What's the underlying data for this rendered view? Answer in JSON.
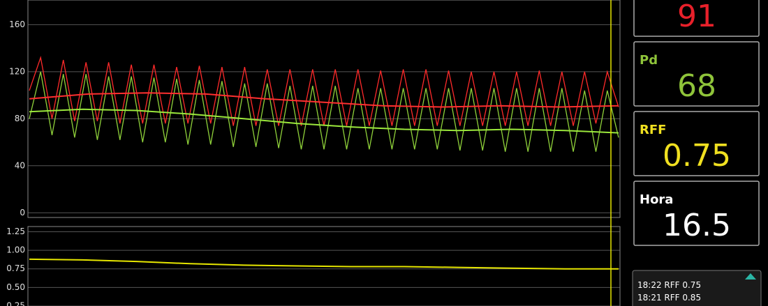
{
  "charts": [
    {
      "type": "line",
      "ylim": [
        -4,
        181
      ],
      "yticks": [
        0,
        40,
        80,
        120,
        160
      ],
      "grid": true,
      "series": [
        {
          "color": "#ff2a2a",
          "values": [
            104,
            132,
            80,
            130,
            78,
            128,
            78,
            128,
            76,
            126,
            76,
            126,
            76,
            124,
            76,
            125,
            76,
            124,
            74,
            124,
            74,
            122,
            74,
            122,
            74,
            122,
            74,
            122,
            74,
            122,
            74,
            121,
            74,
            122,
            74,
            122,
            74,
            121,
            74,
            120,
            74,
            120,
            74,
            120,
            74,
            121,
            74,
            120,
            74,
            120,
            76,
            120,
            90
          ]
        },
        {
          "color": "#8fd13a",
          "values": [
            80,
            120,
            66,
            118,
            64,
            118,
            62,
            116,
            62,
            116,
            60,
            115,
            60,
            114,
            58,
            113,
            58,
            112,
            56,
            110,
            56,
            110,
            55,
            108,
            54,
            108,
            54,
            108,
            54,
            106,
            54,
            106,
            54,
            106,
            54,
            106,
            54,
            106,
            53,
            106,
            53,
            106,
            52,
            106,
            52,
            106,
            52,
            106,
            52,
            104,
            52,
            104,
            64
          ]
        },
        {
          "color": "#ff3030",
          "values": [
            97,
            101,
            102,
            101,
            97,
            94,
            91,
            90,
            91,
            90,
            91
          ]
        },
        {
          "color": "#9be83c",
          "values": [
            86,
            88,
            87,
            84,
            80,
            76,
            73,
            71,
            70,
            71,
            70,
            68
          ]
        }
      ]
    },
    {
      "type": "line",
      "ylim": [
        0.25,
        1.32
      ],
      "yticks": [
        0.25,
        {
          "value": 0.5,
          "label": "0.50"
        },
        0.75,
        {
          "value": 1.0,
          "label": "1.00"
        },
        1.25
      ],
      "grid": true,
      "series": [
        {
          "color": "#e6e600",
          "values": [
            0.88,
            0.87,
            0.85,
            0.82,
            0.8,
            0.79,
            0.78,
            0.78,
            0.77,
            0.76,
            0.75,
            0.75
          ]
        }
      ]
    }
  ],
  "readouts": [
    {
      "value": 91,
      "color": "#e8202a"
    },
    {
      "label": "Pd",
      "value": 68,
      "color": "#8fc43a"
    },
    {
      "label": "RFF",
      "value": 0.75,
      "color": "#f0e020"
    },
    {
      "label": "Hora",
      "value": 16.5,
      "color": "#ffffff"
    }
  ],
  "events": [
    "18:22 RFF 0.75",
    "18:21 RFF 0.85"
  ]
}
